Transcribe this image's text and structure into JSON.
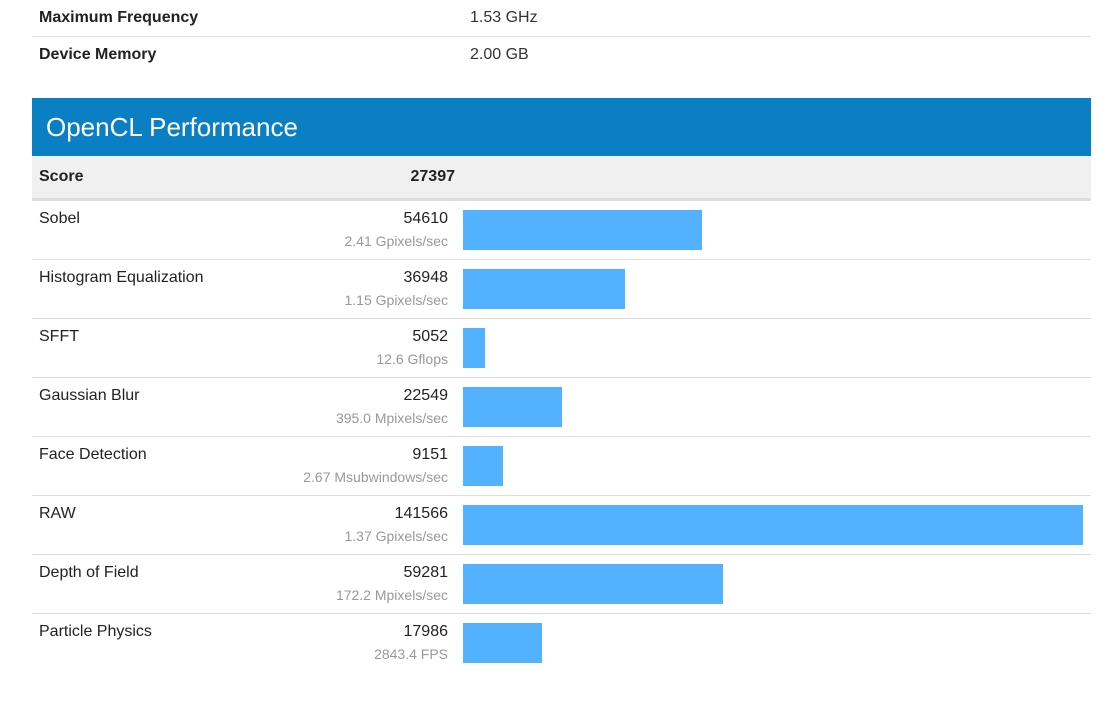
{
  "info": [
    {
      "label": "Maximum Frequency",
      "value": "1.53 GHz"
    },
    {
      "label": "Device Memory",
      "value": "2.00 GB"
    }
  ],
  "section": {
    "title": "OpenCL Performance",
    "score_label": "Score",
    "score_value": "27397"
  },
  "colors": {
    "header": "#0a7fc3",
    "bar": "#52b2ff"
  },
  "chart_data": {
    "type": "bar",
    "categories": [
      "Sobel",
      "Histogram Equalization",
      "SFFT",
      "Gaussian Blur",
      "Face Detection",
      "RAW",
      "Depth of Field",
      "Particle Physics"
    ],
    "values": [
      54610,
      36948,
      5052,
      22549,
      9151,
      141566,
      59281,
      17986
    ],
    "rates": [
      "2.41 Gpixels/sec",
      "1.15 Gpixels/sec",
      "12.6 Gflops",
      "395.0 Mpixels/sec",
      "2.67 Msubwindows/sec",
      "1.37 Gpixels/sec",
      "172.2 Mpixels/sec",
      "2843.4 FPS"
    ],
    "xlim": [
      0,
      141566
    ]
  }
}
